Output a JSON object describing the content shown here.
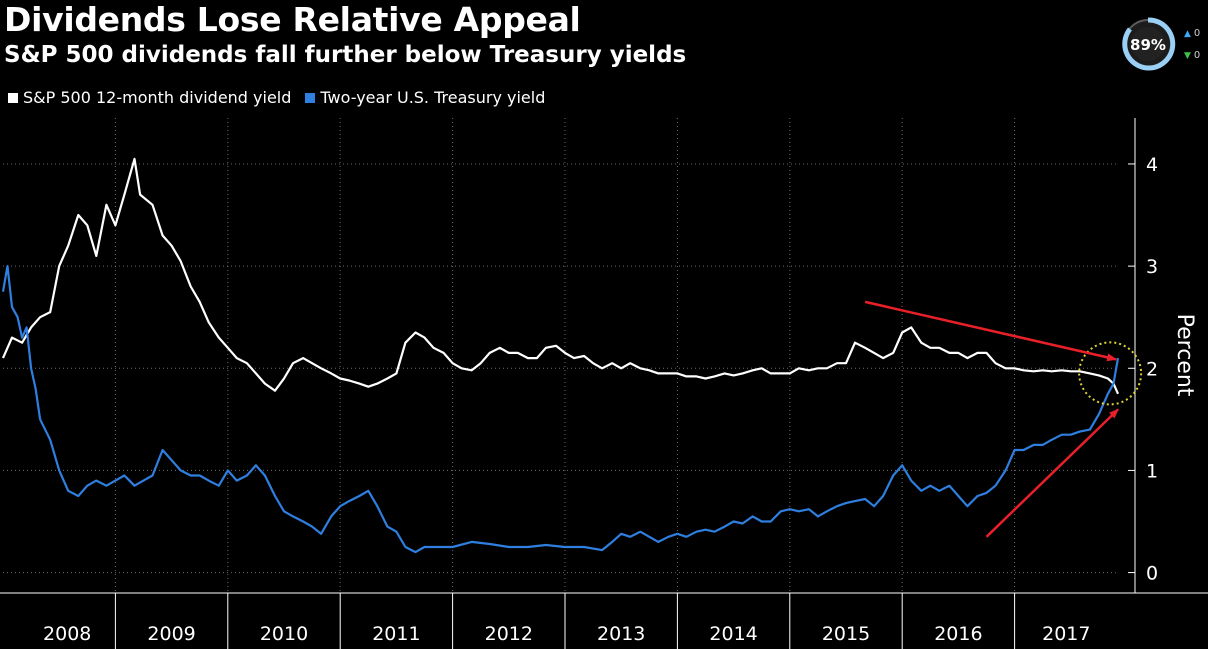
{
  "title": "Dividends Lose Relative Appeal",
  "subtitle": "S&P 500 dividends fall further below Treasury yields",
  "colors": {
    "background": "#000000",
    "dividend": "#ffffff",
    "treasury": "#2f7fe0",
    "arrow": "#e8202a",
    "circle": "#e2d233"
  },
  "overlay": {
    "badge_text": "89%",
    "up_icon": "arrow-up-icon",
    "down_icon": "arrow-down-icon",
    "up_value": "0",
    "down_value": "0",
    "up_color": "#3fa7f5",
    "down_color": "#3cc24a"
  },
  "chart_data": {
    "type": "line",
    "title": "Dividends Lose Relative Appeal",
    "subtitle": "S&P 500 dividends fall further below Treasury yields",
    "ylabel": "Percent",
    "xlabel": "",
    "ylim": [
      -0.2,
      4.45
    ],
    "xlim": [
      2008.0,
      2017.92
    ],
    "yticks": [
      0,
      1,
      2,
      3,
      4
    ],
    "x_tick_labels": [
      "2008",
      "2009",
      "2010",
      "2011",
      "2012",
      "2013",
      "2014",
      "2015",
      "2016",
      "2017"
    ],
    "legend": "top-left",
    "grid": "dotted horizontal and vertical",
    "annotations": [
      "two red arrows pointing to the crossover",
      "dotted yellow circle around the crossover point"
    ],
    "series": [
      {
        "name": "S&P 500 12-month dividend yield",
        "color": "#ffffff",
        "points": [
          [
            2008.0,
            2.1
          ],
          [
            2008.08,
            2.3
          ],
          [
            2008.17,
            2.25
          ],
          [
            2008.25,
            2.4
          ],
          [
            2008.33,
            2.5
          ],
          [
            2008.42,
            2.55
          ],
          [
            2008.5,
            3.0
          ],
          [
            2008.58,
            3.2
          ],
          [
            2008.67,
            3.5
          ],
          [
            2008.75,
            3.4
          ],
          [
            2008.83,
            3.1
          ],
          [
            2008.92,
            3.6
          ],
          [
            2009.0,
            3.4
          ],
          [
            2009.08,
            3.7
          ],
          [
            2009.17,
            4.05
          ],
          [
            2009.22,
            3.7
          ],
          [
            2009.33,
            3.6
          ],
          [
            2009.42,
            3.3
          ],
          [
            2009.5,
            3.2
          ],
          [
            2009.58,
            3.05
          ],
          [
            2009.67,
            2.8
          ],
          [
            2009.75,
            2.65
          ],
          [
            2009.83,
            2.45
          ],
          [
            2009.92,
            2.3
          ],
          [
            2010.0,
            2.2
          ],
          [
            2010.08,
            2.1
          ],
          [
            2010.17,
            2.05
          ],
          [
            2010.25,
            1.95
          ],
          [
            2010.33,
            1.85
          ],
          [
            2010.42,
            1.78
          ],
          [
            2010.5,
            1.9
          ],
          [
            2010.58,
            2.05
          ],
          [
            2010.67,
            2.1
          ],
          [
            2010.75,
            2.05
          ],
          [
            2010.83,
            2.0
          ],
          [
            2010.92,
            1.95
          ],
          [
            2011.0,
            1.9
          ],
          [
            2011.08,
            1.88
          ],
          [
            2011.17,
            1.85
          ],
          [
            2011.25,
            1.82
          ],
          [
            2011.33,
            1.85
          ],
          [
            2011.42,
            1.9
          ],
          [
            2011.5,
            1.95
          ],
          [
            2011.58,
            2.25
          ],
          [
            2011.67,
            2.35
          ],
          [
            2011.75,
            2.3
          ],
          [
            2011.83,
            2.2
          ],
          [
            2011.92,
            2.15
          ],
          [
            2012.0,
            2.05
          ],
          [
            2012.08,
            2.0
          ],
          [
            2012.17,
            1.98
          ],
          [
            2012.25,
            2.05
          ],
          [
            2012.33,
            2.15
          ],
          [
            2012.42,
            2.2
          ],
          [
            2012.5,
            2.15
          ],
          [
            2012.58,
            2.15
          ],
          [
            2012.67,
            2.1
          ],
          [
            2012.75,
            2.1
          ],
          [
            2012.83,
            2.2
          ],
          [
            2012.92,
            2.22
          ],
          [
            2013.0,
            2.15
          ],
          [
            2013.08,
            2.1
          ],
          [
            2013.17,
            2.12
          ],
          [
            2013.25,
            2.05
          ],
          [
            2013.33,
            2.0
          ],
          [
            2013.42,
            2.05
          ],
          [
            2013.5,
            2.0
          ],
          [
            2013.58,
            2.05
          ],
          [
            2013.67,
            2.0
          ],
          [
            2013.75,
            1.98
          ],
          [
            2013.83,
            1.95
          ],
          [
            2013.92,
            1.95
          ],
          [
            2014.0,
            1.95
          ],
          [
            2014.08,
            1.92
          ],
          [
            2014.17,
            1.92
          ],
          [
            2014.25,
            1.9
          ],
          [
            2014.33,
            1.92
          ],
          [
            2014.42,
            1.95
          ],
          [
            2014.5,
            1.93
          ],
          [
            2014.58,
            1.95
          ],
          [
            2014.67,
            1.98
          ],
          [
            2014.75,
            2.0
          ],
          [
            2014.83,
            1.95
          ],
          [
            2014.92,
            1.95
          ],
          [
            2015.0,
            1.95
          ],
          [
            2015.08,
            2.0
          ],
          [
            2015.17,
            1.98
          ],
          [
            2015.25,
            2.0
          ],
          [
            2015.33,
            2.0
          ],
          [
            2015.42,
            2.05
          ],
          [
            2015.5,
            2.05
          ],
          [
            2015.58,
            2.25
          ],
          [
            2015.67,
            2.2
          ],
          [
            2015.75,
            2.15
          ],
          [
            2015.83,
            2.1
          ],
          [
            2015.92,
            2.15
          ],
          [
            2016.0,
            2.35
          ],
          [
            2016.08,
            2.4
          ],
          [
            2016.17,
            2.25
          ],
          [
            2016.25,
            2.2
          ],
          [
            2016.33,
            2.2
          ],
          [
            2016.42,
            2.15
          ],
          [
            2016.5,
            2.15
          ],
          [
            2016.58,
            2.1
          ],
          [
            2016.67,
            2.15
          ],
          [
            2016.75,
            2.15
          ],
          [
            2016.83,
            2.05
          ],
          [
            2016.92,
            2.0
          ],
          [
            2017.0,
            2.0
          ],
          [
            2017.08,
            1.98
          ],
          [
            2017.17,
            1.97
          ],
          [
            2017.25,
            1.98
          ],
          [
            2017.33,
            1.97
          ],
          [
            2017.42,
            1.98
          ],
          [
            2017.5,
            1.97
          ],
          [
            2017.58,
            1.97
          ],
          [
            2017.67,
            1.95
          ],
          [
            2017.75,
            1.93
          ],
          [
            2017.83,
            1.9
          ],
          [
            2017.88,
            1.85
          ],
          [
            2017.92,
            1.75
          ]
        ]
      },
      {
        "name": "Two-year U.S. Treasury yield",
        "color": "#2f7fe0",
        "points": [
          [
            2008.0,
            2.75
          ],
          [
            2008.04,
            3.0
          ],
          [
            2008.08,
            2.6
          ],
          [
            2008.13,
            2.5
          ],
          [
            2008.17,
            2.3
          ],
          [
            2008.21,
            2.4
          ],
          [
            2008.25,
            2.0
          ],
          [
            2008.29,
            1.8
          ],
          [
            2008.33,
            1.5
          ],
          [
            2008.42,
            1.3
          ],
          [
            2008.5,
            1.0
          ],
          [
            2008.58,
            0.8
          ],
          [
            2008.67,
            0.75
          ],
          [
            2008.75,
            0.85
          ],
          [
            2008.83,
            0.9
          ],
          [
            2008.92,
            0.85
          ],
          [
            2009.0,
            0.9
          ],
          [
            2009.08,
            0.95
          ],
          [
            2009.17,
            0.85
          ],
          [
            2009.25,
            0.9
          ],
          [
            2009.33,
            0.95
          ],
          [
            2009.42,
            1.2
          ],
          [
            2009.5,
            1.1
          ],
          [
            2009.58,
            1.0
          ],
          [
            2009.67,
            0.95
          ],
          [
            2009.75,
            0.95
          ],
          [
            2009.83,
            0.9
          ],
          [
            2009.92,
            0.85
          ],
          [
            2010.0,
            1.0
          ],
          [
            2010.08,
            0.9
          ],
          [
            2010.17,
            0.95
          ],
          [
            2010.25,
            1.05
          ],
          [
            2010.33,
            0.95
          ],
          [
            2010.42,
            0.75
          ],
          [
            2010.5,
            0.6
          ],
          [
            2010.58,
            0.55
          ],
          [
            2010.67,
            0.5
          ],
          [
            2010.75,
            0.45
          ],
          [
            2010.83,
            0.38
          ],
          [
            2010.92,
            0.55
          ],
          [
            2011.0,
            0.65
          ],
          [
            2011.08,
            0.7
          ],
          [
            2011.17,
            0.75
          ],
          [
            2011.25,
            0.8
          ],
          [
            2011.33,
            0.65
          ],
          [
            2011.42,
            0.45
          ],
          [
            2011.5,
            0.4
          ],
          [
            2011.58,
            0.25
          ],
          [
            2011.67,
            0.2
          ],
          [
            2011.75,
            0.25
          ],
          [
            2011.83,
            0.25
          ],
          [
            2011.92,
            0.25
          ],
          [
            2012.0,
            0.25
          ],
          [
            2012.17,
            0.3
          ],
          [
            2012.33,
            0.28
          ],
          [
            2012.5,
            0.25
          ],
          [
            2012.67,
            0.25
          ],
          [
            2012.83,
            0.27
          ],
          [
            2013.0,
            0.25
          ],
          [
            2013.17,
            0.25
          ],
          [
            2013.33,
            0.22
          ],
          [
            2013.42,
            0.3
          ],
          [
            2013.5,
            0.38
          ],
          [
            2013.58,
            0.35
          ],
          [
            2013.67,
            0.4
          ],
          [
            2013.75,
            0.35
          ],
          [
            2013.83,
            0.3
          ],
          [
            2013.92,
            0.35
          ],
          [
            2014.0,
            0.38
          ],
          [
            2014.08,
            0.35
          ],
          [
            2014.17,
            0.4
          ],
          [
            2014.25,
            0.42
          ],
          [
            2014.33,
            0.4
          ],
          [
            2014.42,
            0.45
          ],
          [
            2014.5,
            0.5
          ],
          [
            2014.58,
            0.48
          ],
          [
            2014.67,
            0.55
          ],
          [
            2014.75,
            0.5
          ],
          [
            2014.83,
            0.5
          ],
          [
            2014.92,
            0.6
          ],
          [
            2015.0,
            0.62
          ],
          [
            2015.08,
            0.6
          ],
          [
            2015.17,
            0.62
          ],
          [
            2015.25,
            0.55
          ],
          [
            2015.33,
            0.6
          ],
          [
            2015.42,
            0.65
          ],
          [
            2015.5,
            0.68
          ],
          [
            2015.58,
            0.7
          ],
          [
            2015.67,
            0.72
          ],
          [
            2015.75,
            0.65
          ],
          [
            2015.83,
            0.75
          ],
          [
            2015.92,
            0.95
          ],
          [
            2016.0,
            1.05
          ],
          [
            2016.08,
            0.9
          ],
          [
            2016.17,
            0.8
          ],
          [
            2016.25,
            0.85
          ],
          [
            2016.33,
            0.8
          ],
          [
            2016.42,
            0.85
          ],
          [
            2016.5,
            0.75
          ],
          [
            2016.58,
            0.65
          ],
          [
            2016.67,
            0.75
          ],
          [
            2016.75,
            0.78
          ],
          [
            2016.83,
            0.85
          ],
          [
            2016.92,
            1.0
          ],
          [
            2017.0,
            1.2
          ],
          [
            2017.08,
            1.2
          ],
          [
            2017.17,
            1.25
          ],
          [
            2017.25,
            1.25
          ],
          [
            2017.33,
            1.3
          ],
          [
            2017.42,
            1.35
          ],
          [
            2017.5,
            1.35
          ],
          [
            2017.58,
            1.38
          ],
          [
            2017.67,
            1.4
          ],
          [
            2017.75,
            1.55
          ],
          [
            2017.83,
            1.75
          ],
          [
            2017.88,
            1.85
          ],
          [
            2017.92,
            2.1
          ]
        ]
      }
    ]
  }
}
